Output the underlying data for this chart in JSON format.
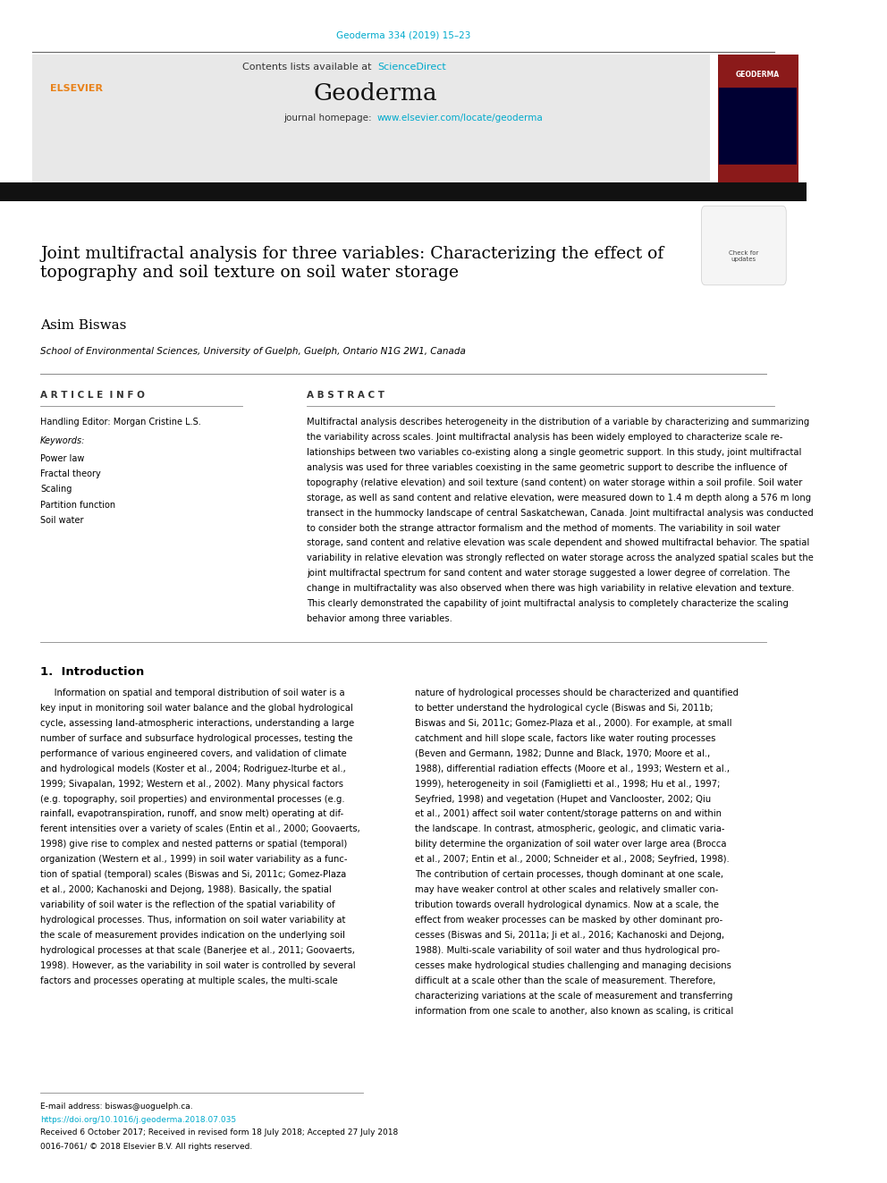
{
  "page_width": 9.92,
  "page_height": 13.23,
  "background_color": "#ffffff",
  "journal_ref_color": "#00aacc",
  "journal_ref_text": "Geoderma 334 (2019) 15–23",
  "header_bg_color": "#e8e8e8",
  "header_text_contents": "Contents lists available at",
  "header_sciencedirect": "ScienceDirect",
  "header_sciencedirect_color": "#00aacc",
  "journal_name": "Geoderma",
  "journal_homepage_label": "journal homepage:",
  "journal_homepage_url": "www.elsevier.com/locate/geoderma",
  "journal_homepage_color": "#00aacc",
  "elsevier_logo_color": "#e8821a",
  "elsevier_text": "ELSEVIER",
  "geoderma_badge_bg": "#8b1a1a",
  "geoderma_badge_text": "GEODERMA",
  "separator_color": "#333333",
  "title": "Joint multifractal analysis for three variables: Characterizing the effect of\ntopography and soil texture on soil water storage",
  "author": "Asim Biswas",
  "affiliation": "School of Environmental Sciences, University of Guelph, Guelph, Ontario N1G 2W1, Canada",
  "article_info_header": "A R T I C L E  I N F O",
  "abstract_header": "A B S T R A C T",
  "handling_editor_label": "Handling Editor: Morgan Cristine L.S.",
  "keywords_label": "Keywords:",
  "keywords": [
    "Power law",
    "Fractal theory",
    "Scaling",
    "Partition function",
    "Soil water"
  ],
  "abstract_lines": [
    "Multifractal analysis describes heterogeneity in the distribution of a variable by characterizing and summarizing",
    "the variability across scales. Joint multifractal analysis has been widely employed to characterize scale re-",
    "lationships between two variables co-existing along a single geometric support. In this study, joint multifractal",
    "analysis was used for three variables coexisting in the same geometric support to describe the influence of",
    "topography (relative elevation) and soil texture (sand content) on water storage within a soil profile. Soil water",
    "storage, as well as sand content and relative elevation, were measured down to 1.4 m depth along a 576 m long",
    "transect in the hummocky landscape of central Saskatchewan, Canada. Joint multifractal analysis was conducted",
    "to consider both the strange attractor formalism and the method of moments. The variability in soil water",
    "storage, sand content and relative elevation was scale dependent and showed multifractal behavior. The spatial",
    "variability in relative elevation was strongly reflected on water storage across the analyzed spatial scales but the",
    "joint multifractal spectrum for sand content and water storage suggested a lower degree of correlation. The",
    "change in multifractality was also observed when there was high variability in relative elevation and texture.",
    "This clearly demonstrated the capability of joint multifractal analysis to completely characterize the scaling",
    "behavior among three variables."
  ],
  "intro_header": "1.  Introduction",
  "intro_col1_lines": [
    "     Information on spatial and temporal distribution of soil water is a",
    "key input in monitoring soil water balance and the global hydrological",
    "cycle, assessing land-atmospheric interactions, understanding a large",
    "number of surface and subsurface hydrological processes, testing the",
    "performance of various engineered covers, and validation of climate",
    "and hydrological models (Koster et al., 2004; Rodriguez-Iturbe et al.,",
    "1999; Sivapalan, 1992; Western et al., 2002). Many physical factors",
    "(e.g. topography, soil properties) and environmental processes (e.g.",
    "rainfall, evapotranspiration, runoff, and snow melt) operating at dif-",
    "ferent intensities over a variety of scales (Entin et al., 2000; Goovaerts,",
    "1998) give rise to complex and nested patterns or spatial (temporal)",
    "organization (Western et al., 1999) in soil water variability as a func-",
    "tion of spatial (temporal) scales (Biswas and Si, 2011c; Gomez-Plaza",
    "et al., 2000; Kachanoski and Dejong, 1988). Basically, the spatial",
    "variability of soil water is the reflection of the spatial variability of",
    "hydrological processes. Thus, information on soil water variability at",
    "the scale of measurement provides indication on the underlying soil",
    "hydrological processes at that scale (Banerjee et al., 2011; Goovaerts,",
    "1998). However, as the variability in soil water is controlled by several",
    "factors and processes operating at multiple scales, the multi-scale"
  ],
  "intro_col2_lines": [
    "nature of hydrological processes should be characterized and quantified",
    "to better understand the hydrological cycle (Biswas and Si, 2011b;",
    "Biswas and Si, 2011c; Gomez-Plaza et al., 2000). For example, at small",
    "catchment and hill slope scale, factors like water routing processes",
    "(Beven and Germann, 1982; Dunne and Black, 1970; Moore et al.,",
    "1988), differential radiation effects (Moore et al., 1993; Western et al.,",
    "1999), heterogeneity in soil (Famiglietti et al., 1998; Hu et al., 1997;",
    "Seyfried, 1998) and vegetation (Hupet and Vanclooster, 2002; Qiu",
    "et al., 2001) affect soil water content/storage patterns on and within",
    "the landscape. In contrast, atmospheric, geologic, and climatic varia-",
    "bility determine the organization of soil water over large area (Brocca",
    "et al., 2007; Entin et al., 2000; Schneider et al., 2008; Seyfried, 1998).",
    "The contribution of certain processes, though dominant at one scale,",
    "may have weaker control at other scales and relatively smaller con-",
    "tribution towards overall hydrological dynamics. Now at a scale, the",
    "effect from weaker processes can be masked by other dominant pro-",
    "cesses (Biswas and Si, 2011a; Ji et al., 2016; Kachanoski and Dejong,",
    "1988). Multi-scale variability of soil water and thus hydrological pro-",
    "cesses make hydrological studies challenging and managing decisions",
    "difficult at a scale other than the scale of measurement. Therefore,",
    "characterizing variations at the scale of measurement and transferring",
    "information from one scale to another, also known as scaling, is critical"
  ],
  "footer_email": "E-mail address: biswas@uoguelph.ca.",
  "footer_doi": "https://doi.org/10.1016/j.geoderma.2018.07.035",
  "footer_received": "Received 6 October 2017; Received in revised form 18 July 2018; Accepted 27 July 2018",
  "footer_issn": "0016-7061/ © 2018 Elsevier B.V. All rights reserved.",
  "link_color": "#00aacc",
  "body_text_color": "#000000",
  "header_small_text_color": "#555555"
}
